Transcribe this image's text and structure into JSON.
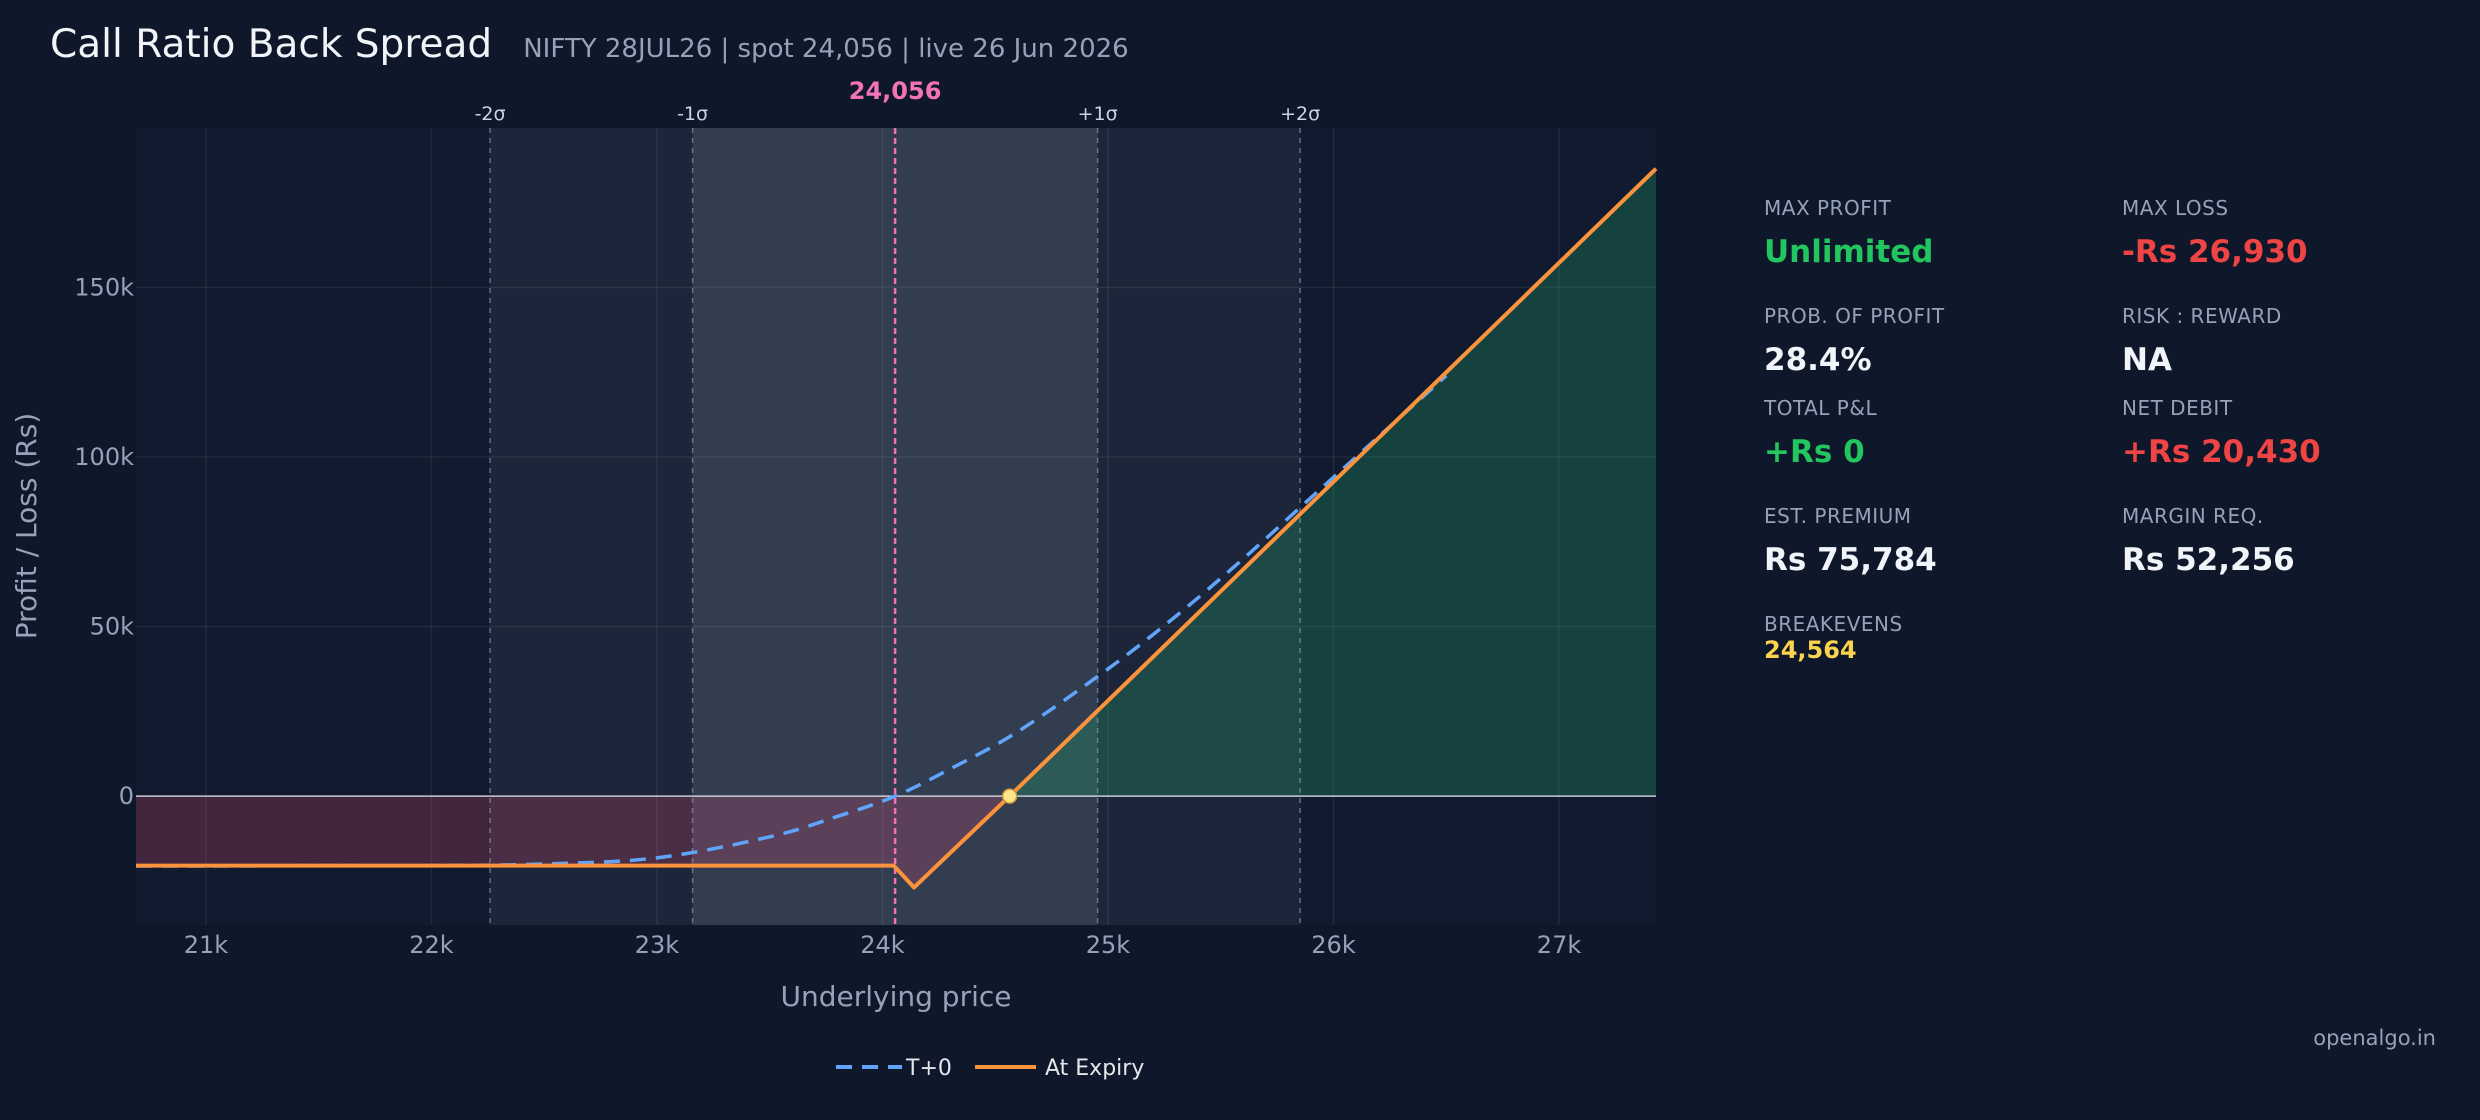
{
  "header": {
    "title": "Call Ratio Back Spread",
    "subtitle": "NIFTY 28JUL26  |  spot 24,056  |  live 26 Jun 2026"
  },
  "chart_data": {
    "type": "line",
    "xlabel": "Underlying price",
    "ylabel": "Profit / Loss (Rs)",
    "xlim": [
      20690,
      27430
    ],
    "ylim": [
      -38000,
      197000
    ],
    "x_ticks": [
      21000,
      22000,
      23000,
      24000,
      25000,
      26000,
      27000
    ],
    "x_tick_labels": [
      "21k",
      "22k",
      "23k",
      "24k",
      "25k",
      "26k",
      "27k"
    ],
    "y_ticks": [
      0,
      50000,
      100000,
      150000
    ],
    "y_tick_labels": [
      "0",
      "50k",
      "100k",
      "150k"
    ],
    "spot": 24056,
    "spot_label": "24,056",
    "sigma_lines": [
      {
        "label": "-2σ",
        "x": 22260
      },
      {
        "label": "-1σ",
        "x": 23158
      },
      {
        "label": "+1σ",
        "x": 24954
      },
      {
        "label": "+2σ",
        "x": 25852
      }
    ],
    "breakeven": 24564,
    "series": [
      {
        "name": "T+0",
        "color": "#60a5fa",
        "style": "dashed",
        "x": [
          20690,
          21000,
          21500,
          22000,
          22500,
          23000,
          23500,
          23800,
          24056,
          24300,
          24600,
          25000,
          25300,
          25600,
          25900,
          26200,
          26500
        ],
        "y": [
          -20600,
          -20600,
          -20500,
          -20500,
          -20000,
          -18200,
          -12000,
          -6000,
          0,
          8000,
          19000,
          37500,
          53000,
          70000,
          88000,
          106000,
          124000
        ]
      },
      {
        "name": "At Expiry",
        "color": "#fb923c",
        "style": "solid",
        "x": [
          20690,
          24050,
          24140,
          24564,
          27430
        ],
        "y": [
          -20500,
          -20500,
          -26930,
          0,
          185000
        ]
      }
    ],
    "legend_position": "bottom-center",
    "grid": true
  },
  "stats": [
    {
      "label": "MAX PROFIT",
      "value": "Unlimited",
      "color": "#22c55e"
    },
    {
      "label": "MAX LOSS",
      "value": "-Rs 26,930",
      "color": "#ef4444"
    },
    {
      "label": "PROB. OF PROFIT",
      "value": "28.4%",
      "color": "#f1f5f9"
    },
    {
      "label": "RISK : REWARD",
      "value": "NA",
      "color": "#f1f5f9"
    },
    {
      "label": "TOTAL P&L",
      "value": "+Rs 0",
      "color": "#22c55e"
    },
    {
      "label": "NET DEBIT",
      "value": "+Rs 20,430",
      "color": "#ef4444"
    },
    {
      "label": "EST. PREMIUM",
      "value": "Rs 75,784",
      "color": "#f1f5f9"
    },
    {
      "label": "MARGIN REQ.",
      "value": "Rs 52,256",
      "color": "#f1f5f9"
    }
  ],
  "breakevens": {
    "label": "BREAKEVENS",
    "value": "24,564",
    "color": "#fcd34d"
  },
  "brand": "openalgo.in"
}
